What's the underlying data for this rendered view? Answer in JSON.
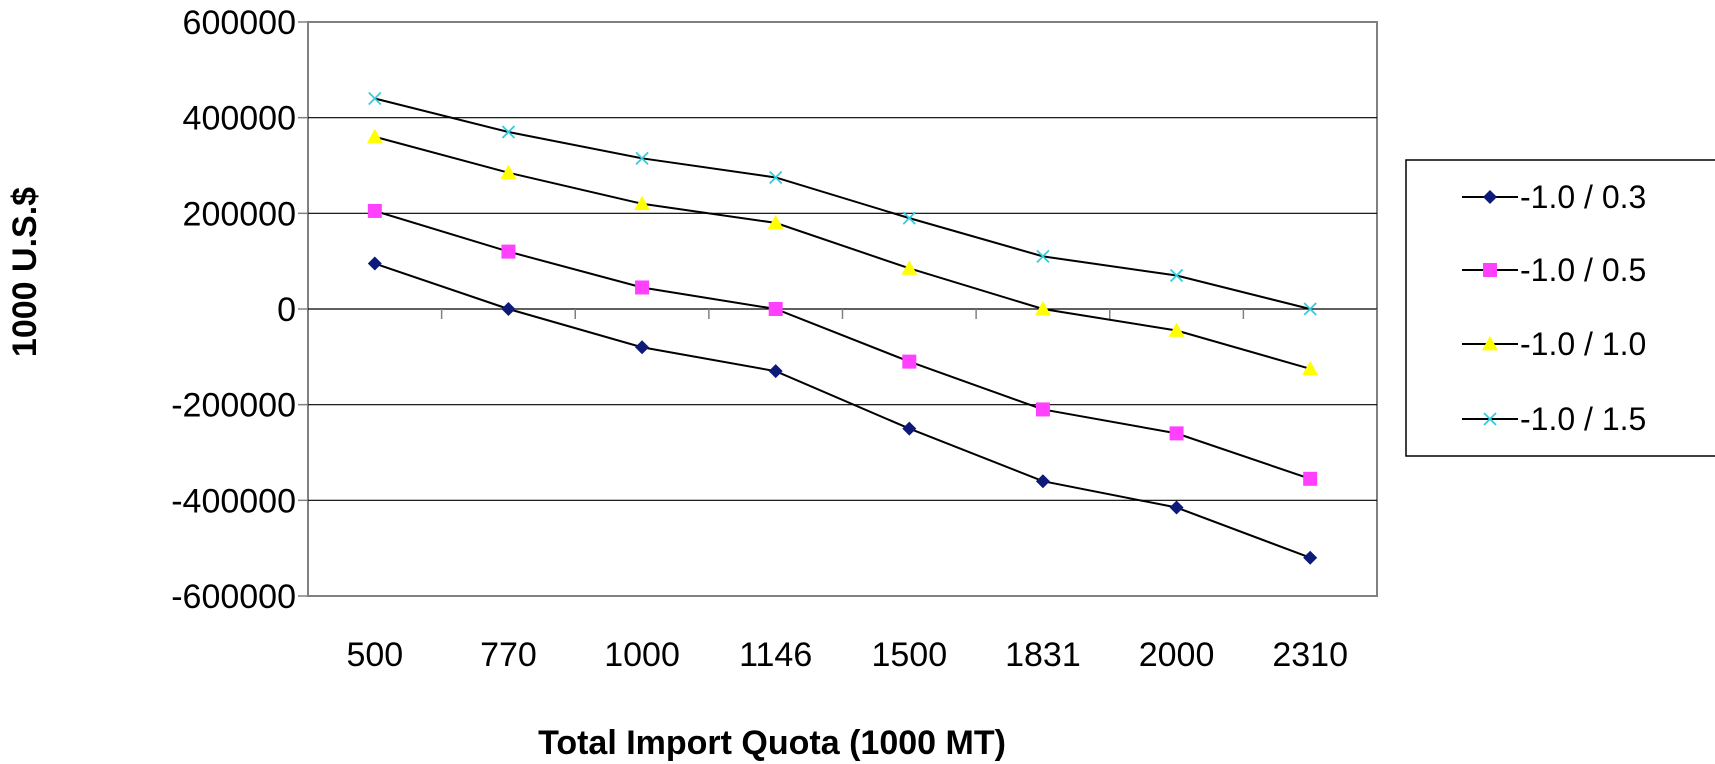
{
  "chart_data": {
    "type": "line",
    "title": "",
    "xlabel": "Total Import Quota (1000 MT)",
    "ylabel": "1000 U.S.$",
    "categories": [
      "500",
      "770",
      "1000",
      "1146",
      "1500",
      "1831",
      "2000",
      "2310"
    ],
    "ylim": [
      -600000,
      600000
    ],
    "yticks": [
      "600000",
      "400000",
      "200000",
      "0",
      "-200000",
      "-400000",
      "-600000"
    ],
    "grid": "horizontal major gridlines",
    "legend_position": "right",
    "series": [
      {
        "name": "-1.0 / 0.3",
        "marker": "diamond",
        "color": "#0d1a7a",
        "values": [
          95000,
          0,
          -80000,
          -130000,
          -250000,
          -360000,
          -415000,
          -520000
        ]
      },
      {
        "name": "-1.0 / 0.5",
        "marker": "square",
        "color": "#ff40ff",
        "values": [
          205000,
          120000,
          45000,
          0,
          -110000,
          -210000,
          -260000,
          -355000
        ]
      },
      {
        "name": "-1.0 / 1.0",
        "marker": "triangle",
        "color": "#ffff00",
        "values": [
          360000,
          285000,
          220000,
          180000,
          85000,
          0,
          -45000,
          -125000
        ]
      },
      {
        "name": "-1.0 / 1.5",
        "marker": "x",
        "color": "#33ccdd",
        "values": [
          440000,
          370000,
          315000,
          275000,
          190000,
          110000,
          70000,
          0
        ]
      }
    ]
  }
}
